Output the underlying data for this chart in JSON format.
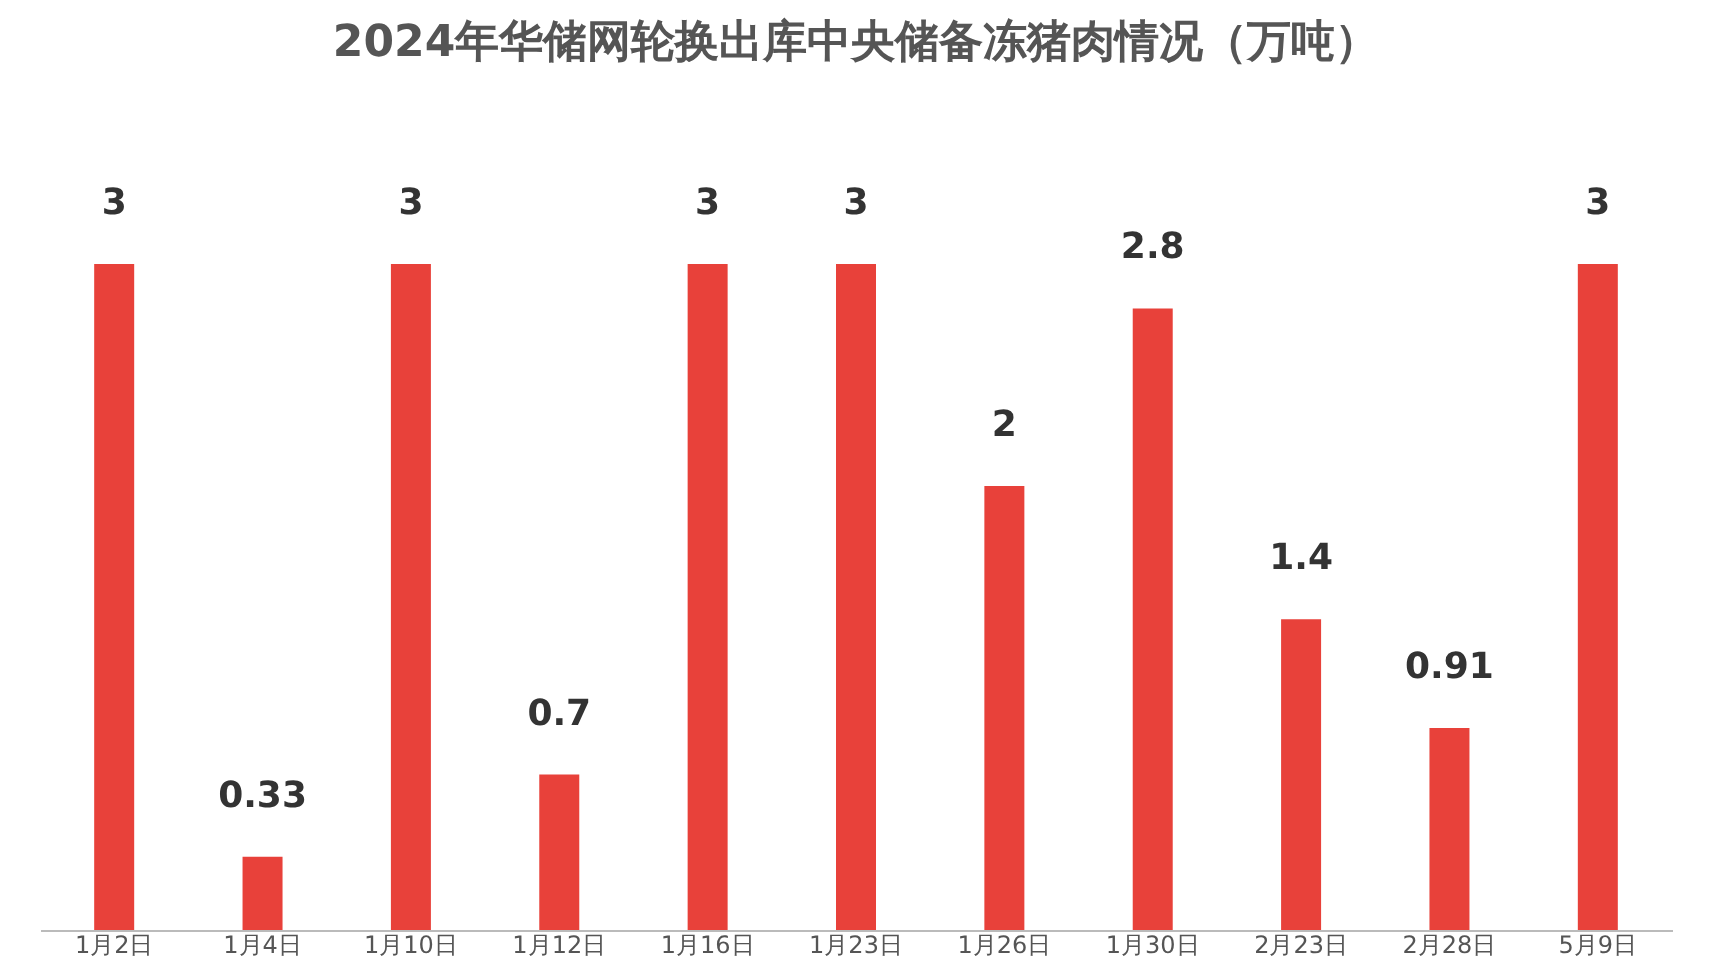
{
  "chart_data": {
    "type": "bar",
    "title": "2024年华储网轮换出库中央储备冻猪肉情况（万吨）",
    "categories": [
      "1月2日",
      "1月4日",
      "1月10日",
      "1月12日",
      "1月16日",
      "1月23日",
      "1月26日",
      "1月30日",
      "2月23日",
      "2月28日",
      "5月9日"
    ],
    "values": [
      3,
      0.33,
      3,
      0.7,
      3,
      3,
      2,
      2.8,
      1.4,
      0.91,
      3
    ],
    "color": "#e8413a",
    "data_labels": true,
    "tick_labels": "x",
    "grid": false
  }
}
